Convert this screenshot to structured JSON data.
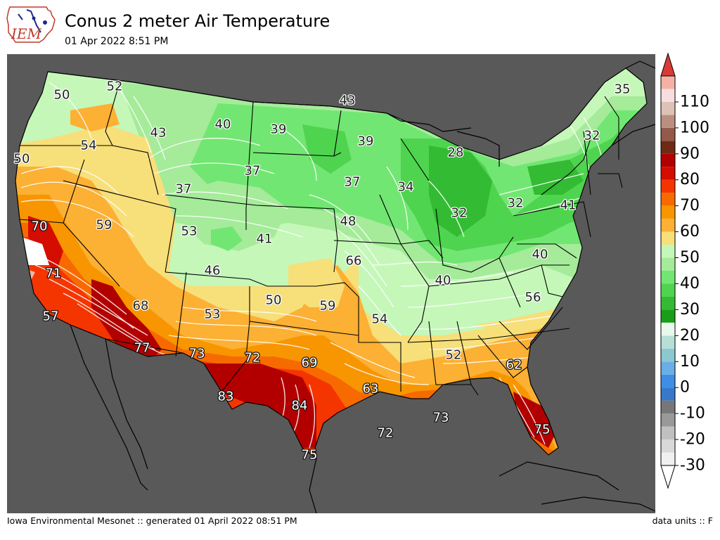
{
  "header": {
    "title": "Conus 2 meter Air Temperature",
    "subtitle": "01 Apr 2022 8:51 PM",
    "logo_text": "IEM"
  },
  "footer": {
    "left": "Iowa Environmental Mesonet :: generated 01 April 2022 08:51 PM",
    "right": "data units :: F"
  },
  "colorbar": {
    "ticks": [
      -30,
      -20,
      -10,
      0,
      10,
      20,
      30,
      40,
      50,
      60,
      70,
      80,
      90,
      100,
      110
    ],
    "tick_labels": [
      "-30",
      "-20",
      "-10",
      "0",
      "10",
      "20",
      "30",
      "40",
      "50",
      "60",
      "70",
      "80",
      "90",
      "100",
      "110"
    ],
    "bins": [
      {
        "lo": -30,
        "hi": -25,
        "color": "#f0f0f0"
      },
      {
        "lo": -25,
        "hi": -20,
        "color": "#d9d9d9"
      },
      {
        "lo": -20,
        "hi": -15,
        "color": "#c0c0c0"
      },
      {
        "lo": -15,
        "hi": -10,
        "color": "#999999"
      },
      {
        "lo": -10,
        "hi": -5,
        "color": "#777777"
      },
      {
        "lo": -5,
        "hi": 0,
        "color": "#3878c8"
      },
      {
        "lo": 0,
        "hi": 5,
        "color": "#3e8ee6"
      },
      {
        "lo": 5,
        "hi": 10,
        "color": "#6aaee6"
      },
      {
        "lo": 10,
        "hi": 15,
        "color": "#8bc8d0"
      },
      {
        "lo": 15,
        "hi": 20,
        "color": "#b7dfd6"
      },
      {
        "lo": 20,
        "hi": 25,
        "color": "#e8f8ec"
      },
      {
        "lo": 25,
        "hi": 30,
        "color": "#1a9e1a"
      },
      {
        "lo": 30,
        "hi": 35,
        "color": "#33bb33"
      },
      {
        "lo": 35,
        "hi": 40,
        "color": "#4fd44f"
      },
      {
        "lo": 40,
        "hi": 45,
        "color": "#72e672"
      },
      {
        "lo": 45,
        "hi": 50,
        "color": "#a5eb9a"
      },
      {
        "lo": 50,
        "hi": 55,
        "color": "#c5f7b9"
      },
      {
        "lo": 55,
        "hi": 60,
        "color": "#f7df7a"
      },
      {
        "lo": 60,
        "hi": 65,
        "color": "#fcb034"
      },
      {
        "lo": 65,
        "hi": 70,
        "color": "#f79600"
      },
      {
        "lo": 70,
        "hi": 75,
        "color": "#f76a00"
      },
      {
        "lo": 75,
        "hi": 80,
        "color": "#f53500"
      },
      {
        "lo": 80,
        "hi": 85,
        "color": "#d50c00"
      },
      {
        "lo": 85,
        "hi": 90,
        "color": "#b20000"
      },
      {
        "lo": 90,
        "hi": 95,
        "color": "#6e2a16"
      },
      {
        "lo": 95,
        "hi": 100,
        "color": "#94594a"
      },
      {
        "lo": 100,
        "hi": 105,
        "color": "#bb8f80"
      },
      {
        "lo": 105,
        "hi": 110,
        "color": "#dfc2b6"
      },
      {
        "lo": 110,
        "hi": 115,
        "color": "#f8dede"
      },
      {
        "lo": 115,
        "hi": 120,
        "color": "#f5b2a4"
      }
    ],
    "under_color": "#ffffff",
    "over_color": "#d83b36"
  },
  "chart_data": {
    "type": "contour map",
    "title": "Conus 2 meter Air Temperature",
    "valid_time": "01 Apr 2022 8:51 PM",
    "units": "F",
    "colorbar_range": [
      -30,
      120
    ],
    "station_labels": [
      {
        "value": 50,
        "text": "50",
        "where": "NW Washington"
      },
      {
        "value": 52,
        "text": "52",
        "where": "N Idaho / Washington border"
      },
      {
        "value": 43,
        "text": "43",
        "where": "W Montana"
      },
      {
        "value": 40,
        "text": "40",
        "where": "N central Montana"
      },
      {
        "value": 39,
        "text": "39",
        "where": "W North Dakota"
      },
      {
        "value": 43,
        "text": "43",
        "where": "N North Dakota / Minnesota border"
      },
      {
        "value": 39,
        "text": "39",
        "where": "NW Minnesota"
      },
      {
        "value": 35,
        "text": "35",
        "where": "N Maine"
      },
      {
        "value": 50,
        "text": "50",
        "where": "Oregon coast"
      },
      {
        "value": 54,
        "text": "54",
        "where": "Central Oregon"
      },
      {
        "value": 37,
        "text": "37",
        "where": "Central Wyoming"
      },
      {
        "value": 37,
        "text": "37",
        "where": "South Dakota"
      },
      {
        "value": 37,
        "text": "37",
        "where": "SW Minnesota"
      },
      {
        "value": 34,
        "text": "34",
        "where": "Wisconsin"
      },
      {
        "value": 28,
        "text": "28",
        "where": "N Michigan"
      },
      {
        "value": 32,
        "text": "32",
        "where": "New Hampshire"
      },
      {
        "value": 70,
        "text": "70",
        "where": "N California interior"
      },
      {
        "value": 59,
        "text": "59",
        "where": "Nevada"
      },
      {
        "value": 53,
        "text": "53",
        "where": "Utah"
      },
      {
        "value": 41,
        "text": "41",
        "where": "Nebraska"
      },
      {
        "value": 48,
        "text": "48",
        "where": "Iowa"
      },
      {
        "value": 32,
        "text": "32",
        "where": "Michigan / Indiana"
      },
      {
        "value": 32,
        "text": "32",
        "where": "Ohio / Pennsylvania"
      },
      {
        "value": 41,
        "text": "41",
        "where": "Long Island / New York"
      },
      {
        "value": 71,
        "text": "71",
        "where": "Central California"
      },
      {
        "value": 46,
        "text": "46",
        "where": "Colorado"
      },
      {
        "value": 66,
        "text": "66",
        "where": "E Kansas / Missouri"
      },
      {
        "value": 40,
        "text": "40",
        "where": "Kentucky"
      },
      {
        "value": 40,
        "text": "40",
        "where": "Virginia"
      },
      {
        "value": 57,
        "text": "57",
        "where": "S California coast"
      },
      {
        "value": 68,
        "text": "68",
        "where": "Arizona"
      },
      {
        "value": 53,
        "text": "53",
        "where": "New Mexico"
      },
      {
        "value": 50,
        "text": "50",
        "where": "Texas panhandle"
      },
      {
        "value": 59,
        "text": "59",
        "where": "Oklahoma"
      },
      {
        "value": 54,
        "text": "54",
        "where": "Arkansas"
      },
      {
        "value": 56,
        "text": "56",
        "where": "North Carolina"
      },
      {
        "value": 77,
        "text": "77",
        "where": "S Arizona"
      },
      {
        "value": 73,
        "text": "73",
        "where": "W Texas"
      },
      {
        "value": 72,
        "text": "72",
        "where": "W central Texas"
      },
      {
        "value": 69,
        "text": "69",
        "where": "N Texas"
      },
      {
        "value": 52,
        "text": "52",
        "where": "Alabama"
      },
      {
        "value": 62,
        "text": "62",
        "where": "Georgia / South Carolina"
      },
      {
        "value": 83,
        "text": "83",
        "where": "Big Bend Texas"
      },
      {
        "value": 84,
        "text": "84",
        "where": "S Texas"
      },
      {
        "value": 63,
        "text": "63",
        "where": "Louisiana coast"
      },
      {
        "value": 72,
        "text": "72",
        "where": "Gulf of Mexico"
      },
      {
        "value": 73,
        "text": "73",
        "where": "N Gulf of Mexico"
      },
      {
        "value": 75,
        "text": "75",
        "where": "S Florida"
      },
      {
        "value": 75,
        "text": "75",
        "where": "S Texas tip"
      }
    ]
  }
}
